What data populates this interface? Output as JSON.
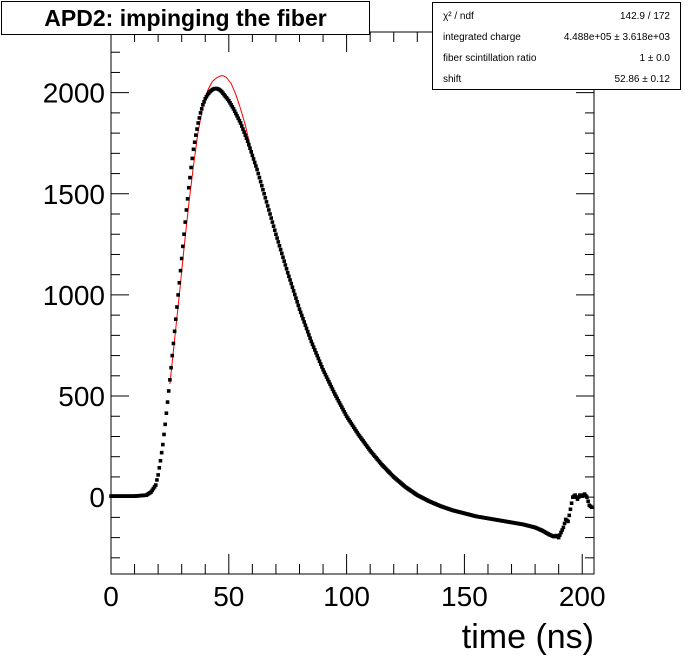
{
  "chart_data": {
    "type": "scatter",
    "title": "APD2: impinging the fiber",
    "xlabel": "time (ns)",
    "ylabel": "",
    "xlim": [
      0,
      205
    ],
    "ylim": [
      -380,
      2300
    ],
    "x_ticks": [
      0,
      50,
      100,
      150,
      200
    ],
    "y_ticks": [
      0,
      500,
      1000,
      1500,
      2000
    ],
    "x_tick_labels": [
      "0",
      "50",
      "100",
      "150",
      "200"
    ],
    "y_tick_labels": [
      "0",
      "500",
      "1000",
      "1500",
      "2000"
    ],
    "grid": false,
    "stats": [
      {
        "label": "χ² / ndf",
        "value": "142.9 / 172"
      },
      {
        "label": "integrated charge",
        "value": "4.488e+05 ± 3.618e+03"
      },
      {
        "label": "fiber scintillation ratio",
        "value": "1 ± 0.0"
      },
      {
        "label": "shift",
        "value": "52.86 ± 0.12"
      }
    ],
    "series": [
      {
        "kind": "data",
        "color": "#000000",
        "x": [
          0,
          5,
          10,
          15,
          17,
          19,
          20,
          21,
          22,
          23,
          24,
          25,
          26,
          27,
          28,
          29,
          30,
          31,
          32,
          33,
          34,
          35,
          36,
          37,
          38,
          39,
          40,
          41,
          42,
          43,
          44,
          45,
          46,
          47,
          48,
          50,
          52,
          55,
          58,
          60,
          62,
          65,
          68,
          70,
          75,
          80,
          85,
          90,
          95,
          100,
          105,
          110,
          115,
          120,
          125,
          130,
          135,
          140,
          145,
          150,
          155,
          160,
          165,
          170,
          175,
          180,
          183,
          186,
          188,
          189,
          190,
          191,
          192,
          193,
          194,
          195,
          196,
          197,
          198,
          199,
          200,
          201,
          202,
          203,
          204
        ],
        "y": [
          5,
          5,
          5,
          10,
          25,
          60,
          110,
          180,
          260,
          360,
          470,
          580,
          700,
          820,
          940,
          1060,
          1180,
          1300,
          1420,
          1530,
          1630,
          1720,
          1790,
          1850,
          1900,
          1940,
          1970,
          1990,
          2005,
          2015,
          2020,
          2020,
          2015,
          2005,
          1990,
          1960,
          1920,
          1850,
          1760,
          1690,
          1620,
          1500,
          1380,
          1300,
          1110,
          930,
          770,
          630,
          510,
          400,
          310,
          230,
          160,
          100,
          50,
          10,
          -20,
          -45,
          -65,
          -80,
          -95,
          -105,
          -115,
          -125,
          -135,
          -150,
          -165,
          -185,
          -195,
          -190,
          -200,
          -175,
          -150,
          -110,
          -120,
          -60,
          0,
          10,
          -10,
          10,
          5,
          15,
          0,
          -40,
          -50
        ]
      },
      {
        "kind": "fit",
        "color": "#ff0000",
        "x": [
          25,
          27,
          29,
          31,
          33,
          35,
          37,
          39,
          41,
          43,
          45,
          47,
          48,
          49,
          51,
          53,
          55,
          57,
          59,
          61
        ],
        "y": [
          560,
          780,
          1000,
          1230,
          1450,
          1640,
          1810,
          1930,
          2010,
          2055,
          2075,
          2085,
          2082,
          2075,
          2045,
          1990,
          1920,
          1840,
          1740,
          1640
        ]
      }
    ]
  }
}
